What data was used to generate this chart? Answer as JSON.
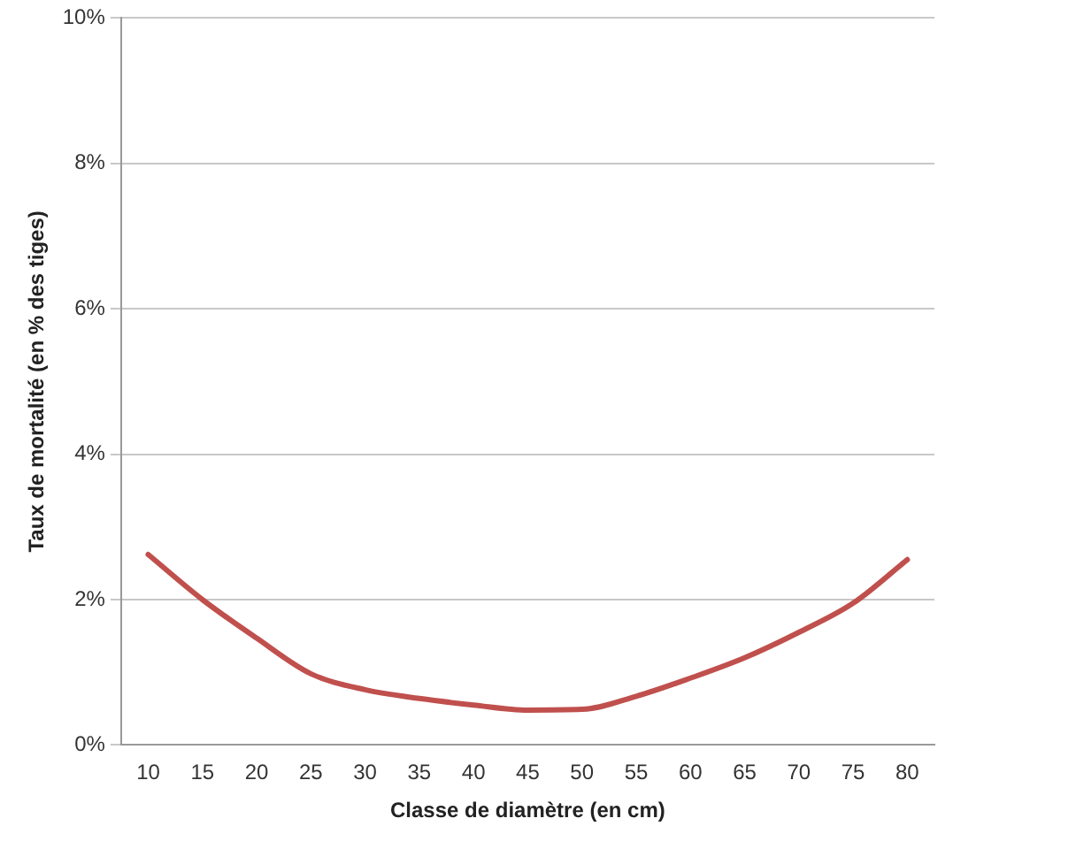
{
  "chart_data": {
    "type": "line",
    "xlabel": "Classe de diamètre (en cm)",
    "ylabel": "Taux de mortalité (en % des tiges)",
    "categories": [
      "10",
      "15",
      "20",
      "25",
      "30",
      "35",
      "40",
      "45",
      "50",
      "55",
      "60",
      "65",
      "70",
      "75",
      "80"
    ],
    "series": [
      {
        "color": "#c0504d",
        "values": [
          2.62,
          2.0,
          1.47,
          0.98,
          0.76,
          0.64,
          0.55,
          0.48,
          0.49,
          0.67,
          0.92,
          1.2,
          1.55,
          1.95,
          2.55
        ]
      }
    ],
    "ylim": [
      0,
      10
    ],
    "yticks": [
      {
        "value": 0,
        "label": "0%"
      },
      {
        "value": 2,
        "label": "2%"
      },
      {
        "value": 4,
        "label": "4%"
      },
      {
        "value": 6,
        "label": "6%"
      },
      {
        "value": 8,
        "label": "8%"
      },
      {
        "value": 10,
        "label": "10%"
      }
    ],
    "grid": "y",
    "legend": false,
    "marker": "none",
    "line_style": "solid"
  }
}
